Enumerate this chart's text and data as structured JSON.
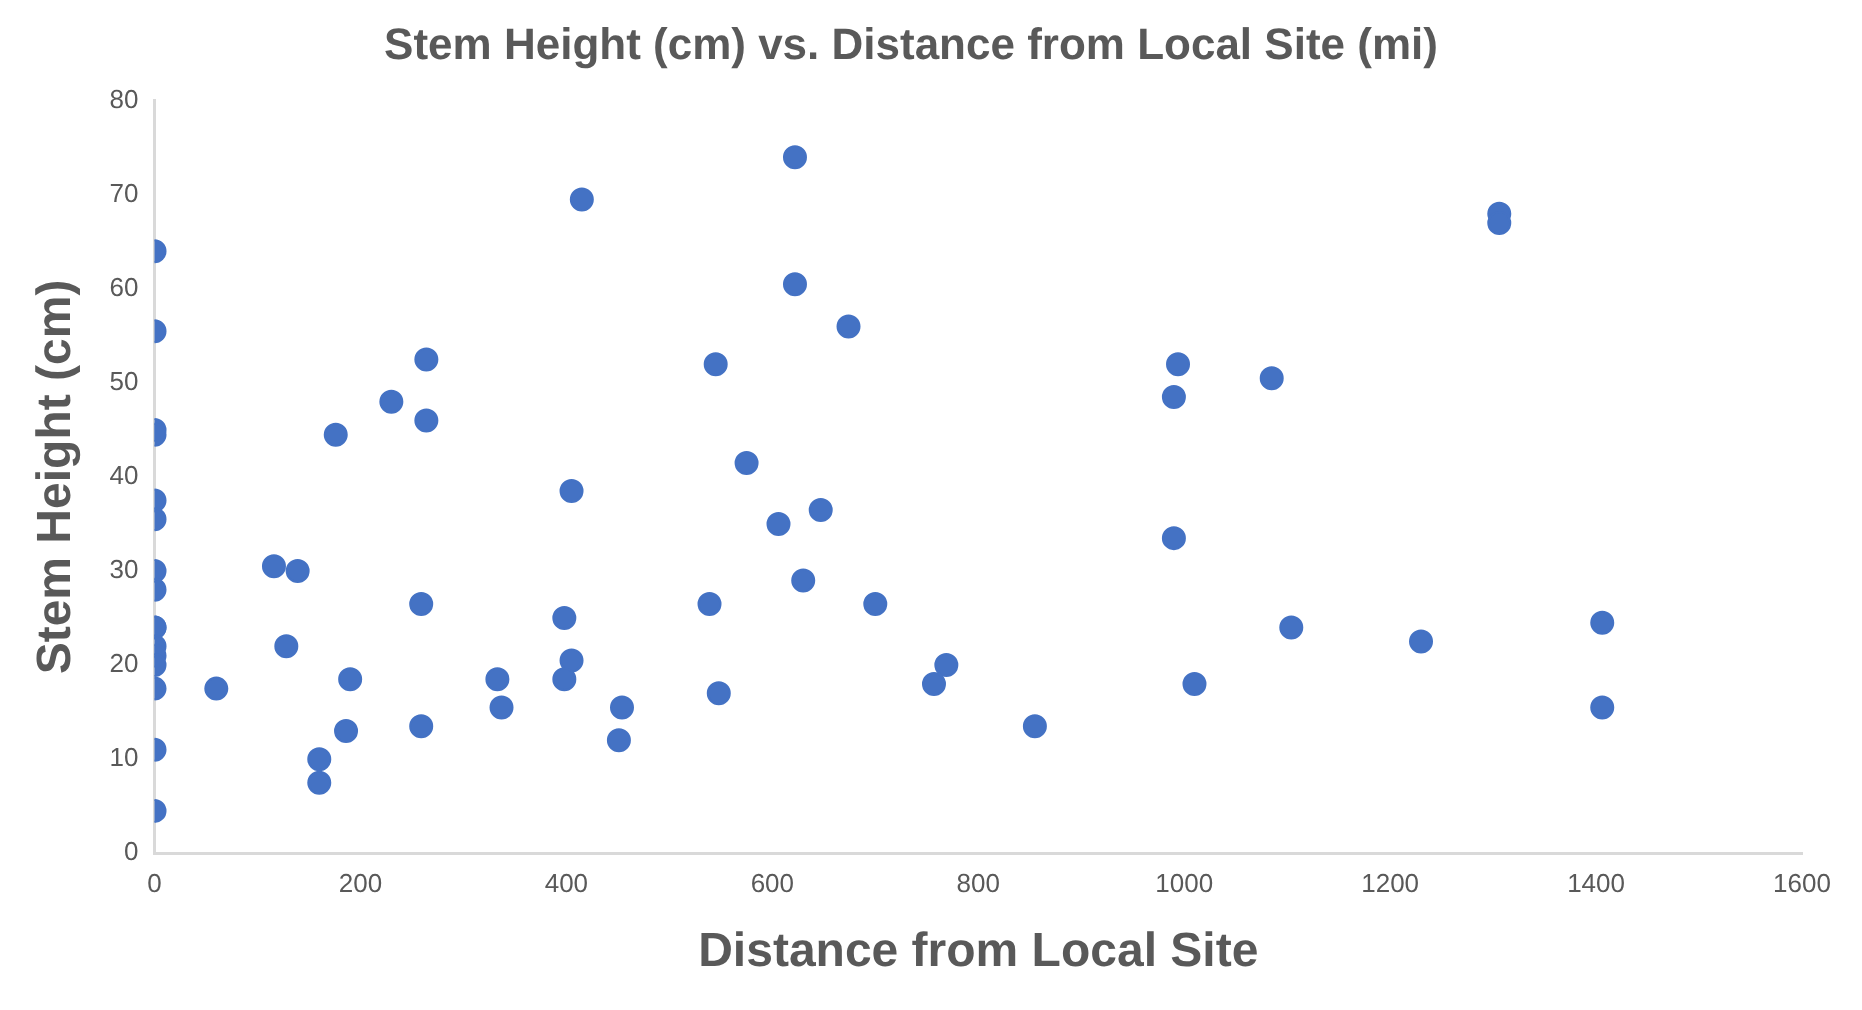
{
  "chart_data": {
    "type": "scatter",
    "title": "Stem Height (cm) vs. Distance from Local Site (mi)",
    "xlabel": "Distance from Local Site",
    "ylabel": "Stem Height (cm)",
    "xlim": [
      0,
      1600
    ],
    "xticks": [
      0,
      200,
      400,
      600,
      800,
      1000,
      1200,
      1400,
      1600
    ],
    "ylim": [
      0,
      80
    ],
    "yticks": [
      0,
      10,
      20,
      30,
      40,
      50,
      60,
      70,
      80
    ],
    "grid": false,
    "legend": false,
    "marker": "circle",
    "series": [
      {
        "color": "#4472c4",
        "x": [
          0,
          0,
          0,
          0,
          0,
          0,
          0,
          0,
          0,
          0,
          0,
          0,
          0,
          0,
          0,
          0,
          60,
          116,
          139,
          128,
          160,
          160,
          176,
          190,
          186,
          230,
          264,
          264,
          259,
          259,
          333,
          337,
          415,
          405,
          398,
          405,
          398,
          454,
          451,
          622,
          622,
          674,
          545,
          575,
          606,
          647,
          630,
          539,
          700,
          548,
          769,
          757,
          855,
          994,
          990,
          990,
          1010,
          1085,
          1306,
          1306,
          1104,
          1230,
          1406,
          1406
        ],
        "values": [
          64,
          55.5,
          45,
          44.5,
          37.5,
          35.5,
          30,
          28,
          24,
          24,
          22,
          21,
          20,
          17.5,
          11,
          4.5,
          17.5,
          30.5,
          30,
          22,
          10,
          7.5,
          44.5,
          18.5,
          13,
          48,
          52.5,
          46,
          26.5,
          13.5,
          18.5,
          15.5,
          69.5,
          38.5,
          25,
          20.5,
          18.5,
          15.5,
          12,
          74,
          60.5,
          56,
          52,
          41.5,
          35,
          36.5,
          29,
          26.5,
          26.5,
          17,
          20,
          18,
          13.5,
          52,
          48.5,
          33.5,
          18,
          50.5,
          68,
          67,
          24,
          22.5,
          24.5,
          15.5
        ]
      }
    ]
  }
}
